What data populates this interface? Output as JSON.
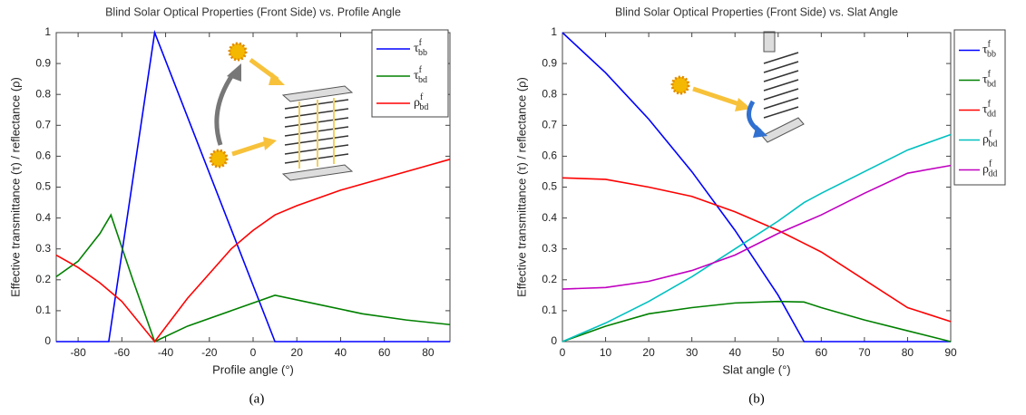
{
  "chart_data": [
    {
      "type": "line",
      "title": "Blind Solar Optical Properties (Front Side) vs. Profile Angle",
      "x_label": "Profile angle (°)",
      "y_label": "Effective transmittance (τ) / reflectance (ρ)",
      "caption": "(a)",
      "xlim": [
        -90,
        90
      ],
      "xticks": [
        -80,
        -60,
        -40,
        -20,
        0,
        20,
        40,
        60,
        80
      ],
      "ylim": [
        0,
        1
      ],
      "yticks": [
        0,
        0.1,
        0.2,
        0.3,
        0.4,
        0.5,
        0.6,
        0.7,
        0.8,
        0.9,
        1
      ],
      "legend": "upper right",
      "series": [
        {
          "name": "τ",
          "name_sup": "f",
          "name_sub": "bb",
          "color": "#0000ff",
          "x": [
            -90,
            -66,
            -45,
            10,
            90
          ],
          "values": [
            0,
            0,
            1,
            0,
            0
          ]
        },
        {
          "name": "τ",
          "name_sup": "f",
          "name_sub": "bd",
          "color": "#008000",
          "x": [
            -90,
            -80,
            -70,
            -65,
            -55,
            -45,
            -30,
            -10,
            10,
            30,
            50,
            70,
            90
          ],
          "values": [
            0.21,
            0.26,
            0.35,
            0.41,
            0.2,
            0,
            0.05,
            0.1,
            0.15,
            0.12,
            0.09,
            0.07,
            0.055
          ]
        },
        {
          "name": "ρ",
          "name_sup": "f",
          "name_sub": "bd",
          "color": "#ff0000",
          "x": [
            -90,
            -80,
            -70,
            -60,
            -45,
            -30,
            -20,
            -10,
            0,
            10,
            20,
            40,
            60,
            80,
            90
          ],
          "values": [
            0.28,
            0.24,
            0.19,
            0.13,
            0,
            0.14,
            0.22,
            0.3,
            0.36,
            0.41,
            0.44,
            0.49,
            0.53,
            0.57,
            0.59
          ]
        }
      ]
    },
    {
      "type": "line",
      "title": "Blind Solar Optical Properties (Front Side) vs. Slat Angle",
      "x_label": "Slat angle (°)",
      "y_label": "Effective transmittance (τ) / reflectance (ρ)",
      "caption": "(b)",
      "xlim": [
        0,
        90
      ],
      "xticks": [
        0,
        10,
        20,
        30,
        40,
        50,
        60,
        70,
        80,
        90
      ],
      "ylim": [
        0,
        1
      ],
      "yticks": [
        0,
        0.1,
        0.2,
        0.3,
        0.4,
        0.5,
        0.6,
        0.7,
        0.8,
        0.9,
        1
      ],
      "legend": "outside right",
      "series": [
        {
          "name": "τ",
          "name_sup": "f",
          "name_sub": "bb",
          "color": "#0000ff",
          "x": [
            0,
            10,
            20,
            30,
            40,
            50,
            56,
            90
          ],
          "values": [
            1,
            0.87,
            0.72,
            0.55,
            0.36,
            0.15,
            0,
            0
          ]
        },
        {
          "name": "τ",
          "name_sup": "f",
          "name_sub": "bd",
          "color": "#008000",
          "x": [
            0,
            10,
            20,
            30,
            40,
            50,
            56,
            60,
            70,
            80,
            90
          ],
          "values": [
            0,
            0.05,
            0.09,
            0.11,
            0.125,
            0.13,
            0.128,
            0.11,
            0.07,
            0.035,
            0
          ]
        },
        {
          "name": "τ",
          "name_sup": "f",
          "name_sub": "dd",
          "color": "#ff0000",
          "x": [
            0,
            10,
            20,
            30,
            40,
            50,
            60,
            70,
            80,
            90
          ],
          "values": [
            0.53,
            0.525,
            0.5,
            0.47,
            0.42,
            0.36,
            0.29,
            0.2,
            0.11,
            0.065
          ]
        },
        {
          "name": "ρ",
          "name_sup": "f",
          "name_sub": "bd",
          "color": "#00c0c0",
          "x": [
            0,
            10,
            20,
            30,
            40,
            50,
            56,
            60,
            70,
            80,
            90
          ],
          "values": [
            0,
            0.06,
            0.13,
            0.21,
            0.3,
            0.39,
            0.45,
            0.48,
            0.55,
            0.62,
            0.67
          ]
        },
        {
          "name": "ρ",
          "name_sup": "f",
          "name_sub": "dd",
          "color": "#c000c0",
          "x": [
            0,
            10,
            20,
            30,
            40,
            50,
            60,
            70,
            80,
            90
          ],
          "values": [
            0.17,
            0.175,
            0.195,
            0.23,
            0.28,
            0.35,
            0.41,
            0.48,
            0.545,
            0.57
          ]
        }
      ]
    }
  ]
}
